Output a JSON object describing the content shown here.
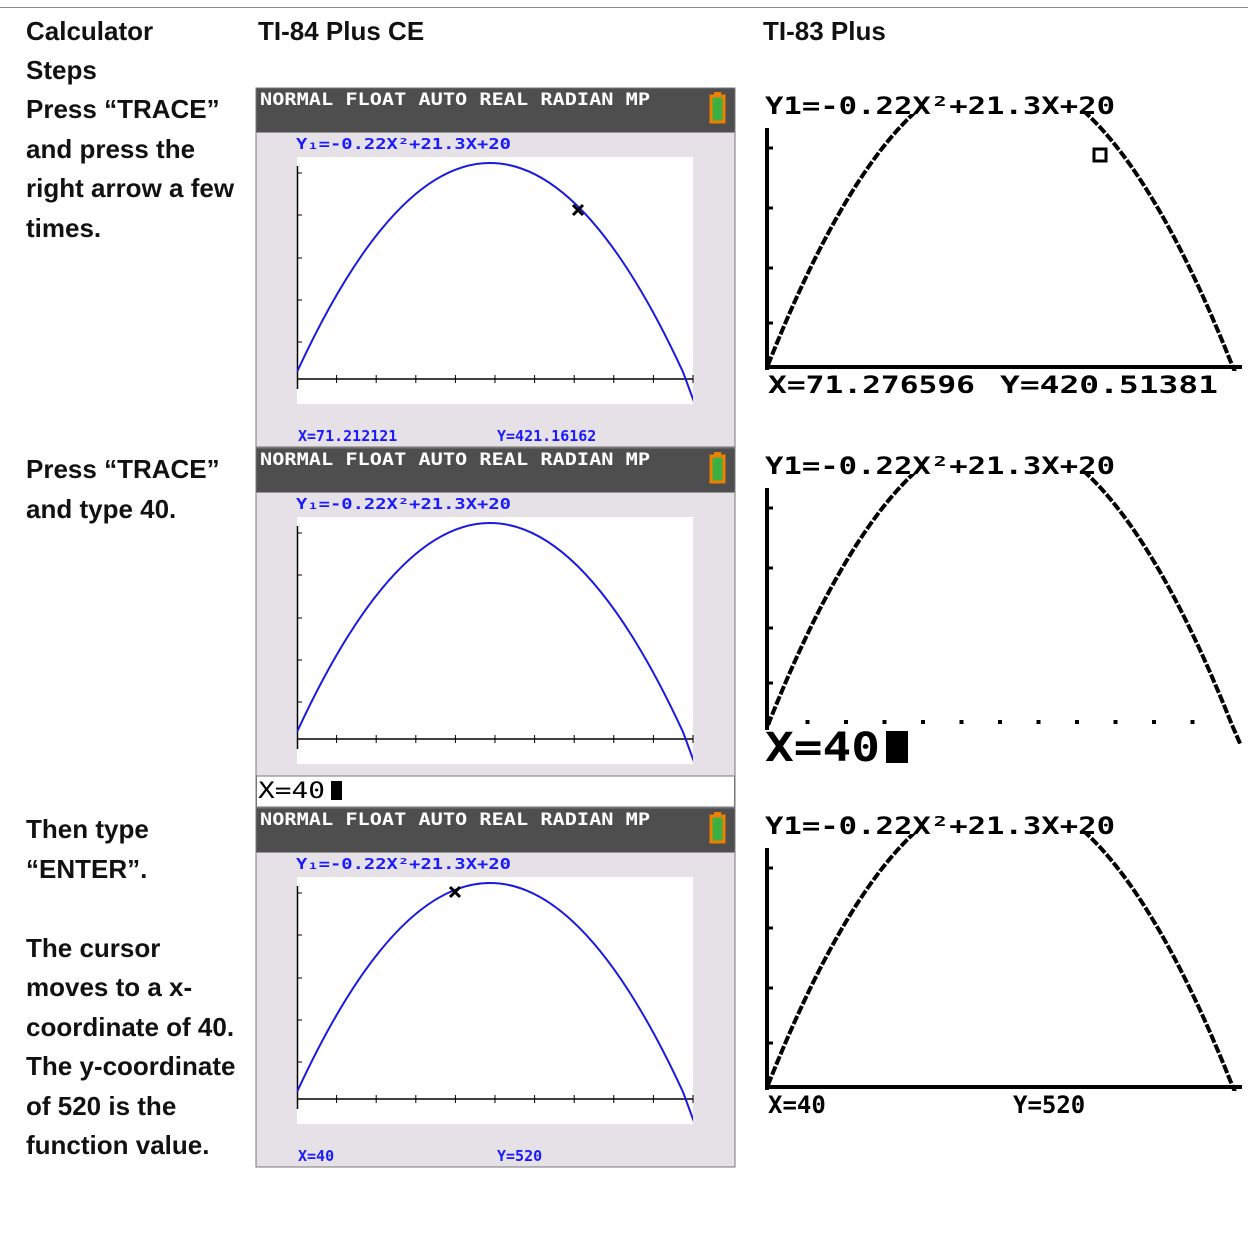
{
  "table": {
    "header": [
      "Calculator Steps",
      "TI-84 Plus CE",
      "TI-83 Plus"
    ],
    "rows": [
      {
        "steps": [
          "Press “TRACE” and press the right arrow a few times."
        ],
        "ti84": {
          "status": "NORMAL FLOAT AUTO REAL RADIAN MP",
          "equation": "Y₁=-0.22X²+21.3X+20",
          "x_readout": "X=71.212121",
          "y_readout": "Y=421.16162"
        },
        "ti83": {
          "equation": "Y1=-0.22X²+21.3X+20",
          "x_readout": "X=71.276596",
          "y_readout": "Y=420.51381"
        }
      },
      {
        "steps": [
          "Press “TRACE” and type 40."
        ],
        "ti84": {
          "status": "NORMAL FLOAT AUTO REAL RADIAN MP",
          "equation": "Y₁=-0.22X²+21.3X+20",
          "entry": "X=40"
        },
        "ti83": {
          "equation": "Y1=-0.22X²+21.3X+20",
          "entry": "X=40"
        }
      },
      {
        "steps": [
          "Then type “ENTER”.",
          "The cursor moves to a x-coordinate of 40. The y-coordinate of 520 is the function value."
        ],
        "ti84": {
          "status": "NORMAL FLOAT AUTO REAL RADIAN MP",
          "equation": "Y₁=-0.22X²+21.3X+20",
          "x_readout": "X=40",
          "y_readout": "Y=520"
        },
        "ti83": {
          "equation": "Y1=-0.22X²+21.3X+20",
          "x_readout": "X=40",
          "y_readout": "Y=520"
        }
      }
    ]
  }
}
